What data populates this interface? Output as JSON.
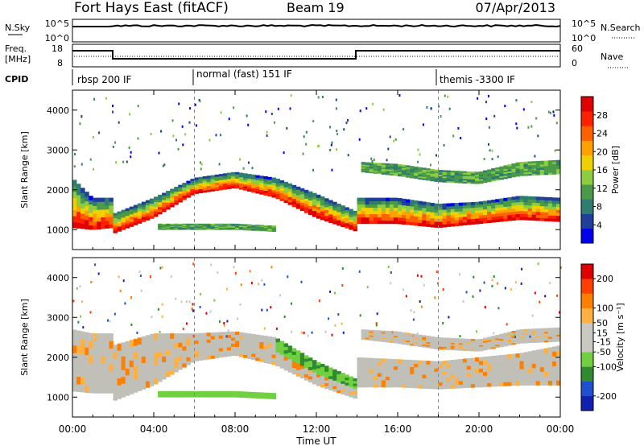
{
  "header": {
    "radar": "Fort Hays East (fitACF)",
    "beam": "Beam 19",
    "date": "07/Apr/2013"
  },
  "panels": {
    "nsky": {
      "label": "N.Sky",
      "ticks_left": [
        "10^5",
        "10^0"
      ],
      "ticks_right": [
        "10^5",
        "10^0"
      ],
      "right_label": "N.Search"
    },
    "freq": {
      "label": "Freq.",
      "unit": "[MHz]",
      "ticks_left": [
        "18",
        "8"
      ],
      "ticks_right": [
        "60",
        "0"
      ],
      "right_label": "Nave"
    },
    "cpid": {
      "label": "CPID",
      "segments": [
        "rbsp 200 IF",
        "normal (fast) 151 IF",
        "themis -3300 IF"
      ]
    }
  },
  "colors": {
    "power_scale": [
      "#0000ee",
      "#1f3f99",
      "#2e7d70",
      "#4a9a4a",
      "#8ccc40",
      "#f0d000",
      "#ffa000",
      "#ff6000",
      "#ff2000",
      "#e00000"
    ],
    "velocity_scale": [
      "#1020b0",
      "#2050d0",
      "#308a30",
      "#70d040",
      "#c8c8c0",
      "#c8c8c0",
      "#ffb040",
      "#ff8000",
      "#ff4000",
      "#e00000"
    ],
    "ground_scatter": "#c0c0b8"
  },
  "chart_data": [
    {
      "type": "heatmap",
      "name": "power",
      "ylabel": "Slant Range [km]",
      "y_ticks": [
        1000,
        2000,
        3000,
        4000
      ],
      "ylim": [
        500,
        4500
      ],
      "xlim": [
        0,
        24
      ],
      "colorbar": {
        "label": "Power [dB]",
        "ticks": [
          4,
          8,
          12,
          16,
          20,
          24,
          28
        ],
        "range": [
          0,
          32
        ]
      },
      "bands": [
        {
          "t": [
            0,
            1,
            2,
            2.01,
            4,
            6,
            8,
            10,
            12,
            14,
            14.01,
            16,
            18,
            20,
            22,
            24
          ],
          "lower": [
            1050,
            1000,
            1050,
            900,
            1300,
            1900,
            2050,
            1800,
            1300,
            950,
            1150,
            1150,
            1050,
            1150,
            1250,
            1200
          ],
          "upper": [
            2300,
            1800,
            1800,
            1400,
            1800,
            2300,
            2450,
            2300,
            1900,
            1450,
            1800,
            1800,
            1650,
            1700,
            1850,
            1800
          ]
        },
        {
          "t": [
            14.2,
            16,
            18,
            20,
            22,
            24
          ],
          "lower": [
            2450,
            2350,
            2200,
            2150,
            2350,
            2400
          ],
          "upper": [
            2700,
            2650,
            2500,
            2450,
            2700,
            2750
          ]
        },
        {
          "t": [
            4.2,
            6,
            8,
            10
          ],
          "lower": [
            1000,
            1000,
            1000,
            950
          ],
          "upper": [
            1150,
            1150,
            1150,
            1100
          ]
        }
      ]
    },
    {
      "type": "heatmap",
      "name": "velocity",
      "ylabel": "Slant Range [km]",
      "y_ticks": [
        1000,
        2000,
        3000,
        4000
      ],
      "ylim": [
        500,
        4500
      ],
      "xlim": [
        0,
        24
      ],
      "colorbar": {
        "label": "Velocity [m s⁻¹]",
        "ticks": [
          200,
          100,
          50,
          15,
          -15,
          -50,
          -100,
          -200
        ],
        "range": [
          -250,
          250
        ]
      },
      "bands": [
        {
          "t": [
            0,
            1,
            2,
            2.01,
            4,
            6,
            8,
            10,
            12,
            14,
            14.01,
            16,
            18,
            20,
            22,
            24
          ],
          "lower": [
            1150,
            1100,
            1100,
            900,
            1300,
            1900,
            2050,
            1800,
            1300,
            950,
            1250,
            1250,
            1200,
            1250,
            1300,
            1300
          ],
          "upper": [
            2700,
            2600,
            2600,
            2300,
            2600,
            2600,
            2650,
            2500,
            1900,
            1450,
            2000,
            1950,
            1900,
            2000,
            2100,
            2300
          ]
        },
        {
          "t": [
            14.2,
            16,
            18,
            20,
            22,
            24
          ],
          "lower": [
            2450,
            2350,
            2200,
            2150,
            2350,
            2400
          ],
          "upper": [
            2700,
            2650,
            2500,
            2450,
            2700,
            2750
          ]
        },
        {
          "t": [
            4.2,
            6,
            8,
            10
          ],
          "lower": [
            1000,
            1000,
            1000,
            950
          ],
          "upper": [
            1150,
            1150,
            1150,
            1100
          ]
        }
      ]
    }
  ],
  "x_axis": {
    "ticks": [
      "00:00",
      "04:00",
      "08:00",
      "12:00",
      "16:00",
      "20:00",
      "00:00"
    ],
    "tick_hours": [
      0,
      4,
      8,
      12,
      16,
      20,
      24
    ],
    "label": "Time UT"
  }
}
